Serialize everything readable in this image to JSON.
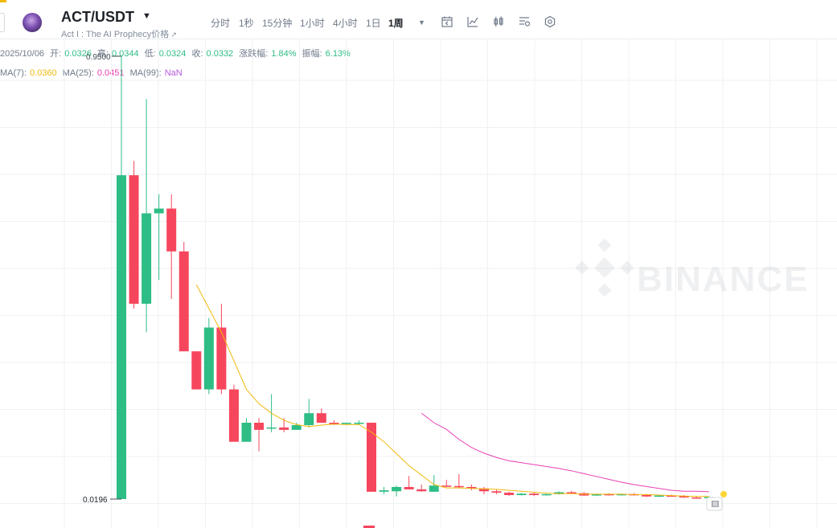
{
  "header": {
    "symbol": "ACT/USDT",
    "subtitle": "Act I : The AI Prophecy价格",
    "intervals": [
      "分时",
      "1秒",
      "15分钟",
      "1小时",
      "4小时",
      "1日",
      "1周"
    ],
    "active_interval": "1周",
    "icons": [
      "calendar-icon",
      "indicator-icon",
      "candle-type-icon",
      "settings-list-icon",
      "gear-icon"
    ]
  },
  "ohlc": {
    "date": "2025/10/06",
    "open_label": "开:",
    "open": "0.0326",
    "high_label": "高:",
    "high": "0.0344",
    "low_label": "低:",
    "low": "0.0324",
    "close_label": "收:",
    "close": "0.0332",
    "change_label": "涨跌幅:",
    "change": "1.84%",
    "amplitude_label": "振幅:",
    "amplitude": "6.13%"
  },
  "ma": {
    "ma7_label": "MA(7):",
    "ma7": "0.0360",
    "ma25_label": "MA(25):",
    "ma25": "0.0451",
    "ma99_label": "MA(99):",
    "ma99": "NaN"
  },
  "watermark": "BINANCE",
  "colors": {
    "up": "#2ebd85",
    "down": "#f6465d",
    "ma7": "#f0b90b",
    "ma25": "#eb40b5",
    "grid": "#f0f1f3"
  },
  "chart_data": {
    "type": "candlestick",
    "max_label": "0.9500",
    "min_label": "0.0196",
    "ylim": [
      0.0,
      1.0
    ],
    "candles": [
      {
        "o": 0.0196,
        "h": 0.95,
        "l": 0.0196,
        "c": 0.7
      },
      {
        "o": 0.7,
        "h": 0.73,
        "l": 0.42,
        "c": 0.43
      },
      {
        "o": 0.43,
        "h": 0.86,
        "l": 0.37,
        "c": 0.62
      },
      {
        "o": 0.62,
        "h": 0.66,
        "l": 0.48,
        "c": 0.63
      },
      {
        "o": 0.63,
        "h": 0.66,
        "l": 0.44,
        "c": 0.54
      },
      {
        "o": 0.54,
        "h": 0.56,
        "l": 0.33,
        "c": 0.33
      },
      {
        "o": 0.33,
        "h": 0.33,
        "l": 0.25,
        "c": 0.25
      },
      {
        "o": 0.25,
        "h": 0.4,
        "l": 0.24,
        "c": 0.38
      },
      {
        "o": 0.38,
        "h": 0.43,
        "l": 0.24,
        "c": 0.25
      },
      {
        "o": 0.25,
        "h": 0.26,
        "l": 0.14,
        "c": 0.14
      },
      {
        "o": 0.14,
        "h": 0.19,
        "l": 0.14,
        "c": 0.18
      },
      {
        "o": 0.18,
        "h": 0.19,
        "l": 0.12,
        "c": 0.165
      },
      {
        "o": 0.17,
        "h": 0.24,
        "l": 0.16,
        "c": 0.17
      },
      {
        "o": 0.17,
        "h": 0.19,
        "l": 0.16,
        "c": 0.165
      },
      {
        "o": 0.165,
        "h": 0.18,
        "l": 0.165,
        "c": 0.175
      },
      {
        "o": 0.175,
        "h": 0.23,
        "l": 0.17,
        "c": 0.2
      },
      {
        "o": 0.2,
        "h": 0.21,
        "l": 0.18,
        "c": 0.18
      },
      {
        "o": 0.18,
        "h": 0.185,
        "l": 0.175,
        "c": 0.178
      },
      {
        "o": 0.178,
        "h": 0.18,
        "l": 0.175,
        "c": 0.18
      },
      {
        "o": 0.18,
        "h": 0.185,
        "l": 0.175,
        "c": 0.18
      },
      {
        "o": 0.18,
        "h": 0.18,
        "l": 0.035,
        "c": 0.035
      },
      {
        "o": 0.035,
        "h": 0.045,
        "l": 0.03,
        "c": 0.038
      },
      {
        "o": 0.036,
        "h": 0.048,
        "l": 0.025,
        "c": 0.045
      },
      {
        "o": 0.045,
        "h": 0.068,
        "l": 0.04,
        "c": 0.04
      },
      {
        "o": 0.04,
        "h": 0.05,
        "l": 0.035,
        "c": 0.036
      },
      {
        "o": 0.035,
        "h": 0.07,
        "l": 0.035,
        "c": 0.048
      },
      {
        "o": 0.048,
        "h": 0.06,
        "l": 0.045,
        "c": 0.047
      },
      {
        "o": 0.047,
        "h": 0.072,
        "l": 0.042,
        "c": 0.045
      },
      {
        "o": 0.045,
        "h": 0.05,
        "l": 0.038,
        "c": 0.042
      },
      {
        "o": 0.042,
        "h": 0.045,
        "l": 0.03,
        "c": 0.036
      },
      {
        "o": 0.036,
        "h": 0.04,
        "l": 0.03,
        "c": 0.033
      },
      {
        "o": 0.033,
        "h": 0.035,
        "l": 0.026,
        "c": 0.028
      },
      {
        "o": 0.028,
        "h": 0.032,
        "l": 0.027,
        "c": 0.031
      },
      {
        "o": 0.031,
        "h": 0.033,
        "l": 0.026,
        "c": 0.028
      },
      {
        "o": 0.028,
        "h": 0.031,
        "l": 0.027,
        "c": 0.03
      },
      {
        "o": 0.03,
        "h": 0.036,
        "l": 0.029,
        "c": 0.034
      },
      {
        "o": 0.034,
        "h": 0.037,
        "l": 0.031,
        "c": 0.032
      },
      {
        "o": 0.032,
        "h": 0.034,
        "l": 0.026,
        "c": 0.027
      },
      {
        "o": 0.027,
        "h": 0.031,
        "l": 0.026,
        "c": 0.03
      },
      {
        "o": 0.03,
        "h": 0.032,
        "l": 0.027,
        "c": 0.028
      },
      {
        "o": 0.028,
        "h": 0.031,
        "l": 0.027,
        "c": 0.03
      },
      {
        "o": 0.03,
        "h": 0.032,
        "l": 0.027,
        "c": 0.028
      },
      {
        "o": 0.028,
        "h": 0.03,
        "l": 0.024,
        "c": 0.025
      },
      {
        "o": 0.025,
        "h": 0.028,
        "l": 0.024,
        "c": 0.027
      },
      {
        "o": 0.027,
        "h": 0.029,
        "l": 0.025,
        "c": 0.026
      },
      {
        "o": 0.026,
        "h": 0.028,
        "l": 0.022,
        "c": 0.023
      },
      {
        "o": 0.023,
        "h": 0.025,
        "l": 0.021,
        "c": 0.022
      },
      {
        "o": 0.022,
        "h": 0.025,
        "l": 0.021,
        "c": 0.024
      }
    ],
    "ma7": [
      null,
      null,
      null,
      null,
      null,
      null,
      0.47,
      0.42,
      0.37,
      0.31,
      0.25,
      0.22,
      0.2,
      0.185,
      0.176,
      0.172,
      0.175,
      0.177,
      0.176,
      0.176,
      0.16,
      0.14,
      0.115,
      0.09,
      0.07,
      0.05,
      0.043,
      0.043,
      0.042,
      0.041,
      0.04,
      0.038,
      0.036,
      0.034,
      0.032,
      0.031,
      0.031,
      0.03,
      0.03,
      0.03,
      0.03,
      0.029,
      0.029,
      0.028,
      0.027,
      0.026,
      0.025,
      0.025
    ],
    "ma25": [
      null,
      null,
      null,
      null,
      null,
      null,
      null,
      null,
      null,
      null,
      null,
      null,
      null,
      null,
      null,
      null,
      null,
      null,
      null,
      null,
      null,
      null,
      null,
      null,
      0.2,
      0.18,
      0.166,
      0.145,
      0.128,
      0.116,
      0.107,
      0.1,
      0.096,
      0.092,
      0.088,
      0.084,
      0.079,
      0.073,
      0.067,
      0.061,
      0.055,
      0.05,
      0.046,
      0.042,
      0.038,
      0.036,
      0.036,
      0.035
    ]
  }
}
